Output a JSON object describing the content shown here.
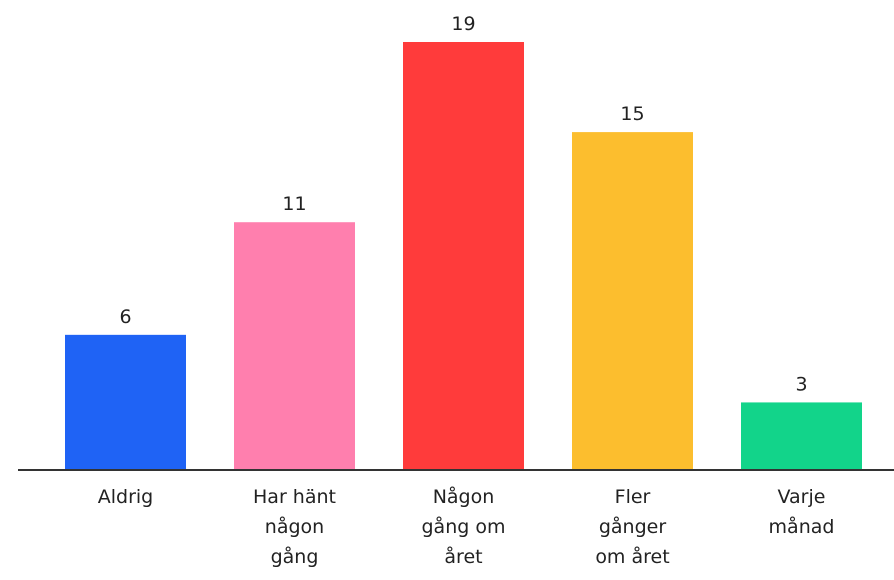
{
  "chart_data": {
    "type": "bar",
    "categories": [
      "Aldrig",
      "Har hänt någon gång",
      "Någon gång om året",
      "Fler gånger om året",
      "Varje månad"
    ],
    "values": [
      6,
      11,
      19,
      15,
      3
    ],
    "colors": [
      "#1f63f5",
      "#ff7fae",
      "#ff3b3b",
      "#fcbe2e",
      "#12d48a"
    ]
  }
}
